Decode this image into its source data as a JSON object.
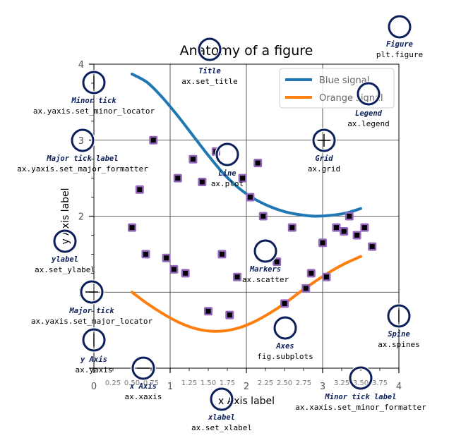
{
  "chart_data": {
    "type": "line",
    "title": "Anatomy of a figure",
    "xlabel": "x Axis label",
    "ylabel": "y Axis label",
    "xlim": [
      0,
      4
    ],
    "ylim": [
      0,
      4
    ],
    "grid": true,
    "legend_position": "top-right",
    "major_ticks": [
      0,
      1,
      2,
      3,
      4
    ],
    "x_minor_ticks": [
      0.25,
      0.5,
      0.75,
      1.25,
      1.5,
      1.75,
      2.25,
      2.5,
      2.75,
      3.25,
      3.5,
      3.75
    ],
    "x_minor_labels": [
      "0.25",
      "0.50",
      "0.75",
      "1.25",
      "1.50",
      "1.75",
      "2.25",
      "2.50",
      "2.75",
      "3.25",
      "3.50",
      "3.75"
    ],
    "y_minor_ticks": [
      0.25,
      0.5,
      0.75,
      1.25,
      1.5,
      1.75,
      2.25,
      2.5,
      2.75,
      3.25,
      3.5,
      3.75
    ],
    "series": [
      {
        "name": "Blue signal",
        "color": "#1f77b4",
        "x": [
          0.5,
          0.7,
          0.9,
          1.1,
          1.3,
          1.5,
          1.7,
          1.9,
          2.1,
          2.3,
          2.5,
          2.7,
          2.9,
          3.1,
          3.3,
          3.5
        ],
        "y": [
          3.87,
          3.76,
          3.56,
          3.32,
          3.06,
          2.8,
          2.56,
          2.37,
          2.23,
          2.13,
          2.06,
          2.02,
          2.0,
          2.01,
          2.04,
          2.1
        ]
      },
      {
        "name": "Orange signal",
        "color": "#ff7f0e",
        "x": [
          0.5,
          0.7,
          0.9,
          1.1,
          1.3,
          1.5,
          1.7,
          1.9,
          2.1,
          2.3,
          2.5,
          2.7,
          2.9,
          3.1,
          3.3,
          3.5
        ],
        "y": [
          1.0,
          0.85,
          0.72,
          0.61,
          0.53,
          0.49,
          0.49,
          0.53,
          0.61,
          0.72,
          0.85,
          1.0,
          1.14,
          1.27,
          1.38,
          1.47
        ]
      }
    ],
    "scatter": {
      "name": "Markers",
      "edge_color": "#9467bd",
      "face_color": "#000000",
      "x": [
        0.5,
        0.6,
        0.68,
        0.78,
        0.95,
        1.05,
        1.1,
        1.2,
        1.3,
        1.42,
        1.5,
        1.6,
        1.68,
        1.78,
        1.88,
        1.95,
        2.05,
        2.15,
        2.22,
        2.4,
        2.5,
        2.6,
        2.78,
        2.85,
        3.0,
        3.05,
        3.18,
        3.28,
        3.35,
        3.45,
        3.55,
        3.65
      ],
      "y": [
        1.85,
        2.35,
        1.5,
        3.0,
        1.45,
        1.3,
        2.5,
        1.25,
        2.75,
        2.45,
        0.75,
        2.85,
        1.5,
        0.7,
        1.2,
        2.5,
        2.25,
        2.7,
        2.0,
        1.4,
        0.85,
        1.85,
        1.05,
        1.25,
        1.65,
        1.2,
        1.85,
        1.8,
        2.0,
        1.75,
        1.85,
        1.6
      ]
    }
  },
  "annotations": [
    {
      "key": "title",
      "name": "Title",
      "call": "ax.set_title"
    },
    {
      "key": "figure",
      "name": "Figure",
      "call": "plt.figure"
    },
    {
      "key": "legend",
      "name": "Legend",
      "call": "ax.legend"
    },
    {
      "key": "minor-tick",
      "name": "Minor tick",
      "call": "ax.yaxis.set_minor_locator"
    },
    {
      "key": "major-tick-label",
      "name": "Major tick label",
      "call": "ax.yaxis.set_major_formatter"
    },
    {
      "key": "line",
      "name": "Line",
      "call": "ax.plot"
    },
    {
      "key": "grid",
      "name": "Grid",
      "call": "ax.grid"
    },
    {
      "key": "ylabel",
      "name": "ylabel",
      "call": "ax.set_ylabel"
    },
    {
      "key": "markers",
      "name": "Markers",
      "call": "ax.scatter"
    },
    {
      "key": "major-tick",
      "name": "Major tick",
      "call": "ax.yaxis.set_major_locator"
    },
    {
      "key": "spine",
      "name": "Spine",
      "call": "ax.spines"
    },
    {
      "key": "axes",
      "name": "Axes",
      "call": "fig.subplots"
    },
    {
      "key": "y-axis",
      "name": "y Axis",
      "call": "ax.yaxis"
    },
    {
      "key": "x-axis",
      "name": "x Axis",
      "call": "ax.xaxis"
    },
    {
      "key": "xlabel",
      "name": "xlabel",
      "call": "ax.set_xlabel"
    },
    {
      "key": "minor-tick-label",
      "name": "Minor tick label",
      "call": "ax.xaxis.set_minor_formatter"
    }
  ],
  "colors": {
    "marker_circle": "#0b1f5a",
    "grid": "#333333",
    "spine": "#000000"
  }
}
